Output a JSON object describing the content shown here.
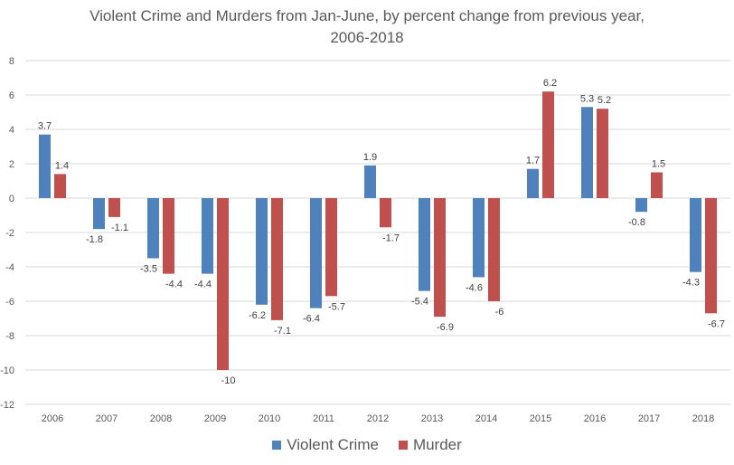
{
  "chart_data": {
    "type": "bar",
    "title_lines": [
      "Violent Crime and Murders from Jan-June, by percent change from previous year,",
      "2006-2018"
    ],
    "categories": [
      "2006",
      "2007",
      "2008",
      "2009",
      "2010",
      "2011",
      "2012",
      "2013",
      "2014",
      "2015",
      "2016",
      "2017",
      "2018"
    ],
    "series": [
      {
        "name": "Violent Crime",
        "color": "#4F81BD",
        "values": [
          3.7,
          -1.8,
          -3.5,
          -4.4,
          -6.2,
          -6.4,
          1.9,
          -5.4,
          -4.6,
          1.7,
          5.3,
          -0.8,
          -4.3
        ]
      },
      {
        "name": "Murder",
        "color": "#C0504D",
        "values": [
          1.4,
          -1.1,
          -4.4,
          -10,
          -7.1,
          -5.7,
          -1.7,
          -6.9,
          -6,
          6.2,
          5.2,
          1.5,
          -6.7
        ]
      }
    ],
    "yticks": [
      8,
      6,
      4,
      2,
      0,
      -2,
      -4,
      -6,
      -8,
      -10,
      -12
    ],
    "ylim": [
      -12,
      8
    ],
    "grid": true,
    "legend_position": "bottom"
  }
}
